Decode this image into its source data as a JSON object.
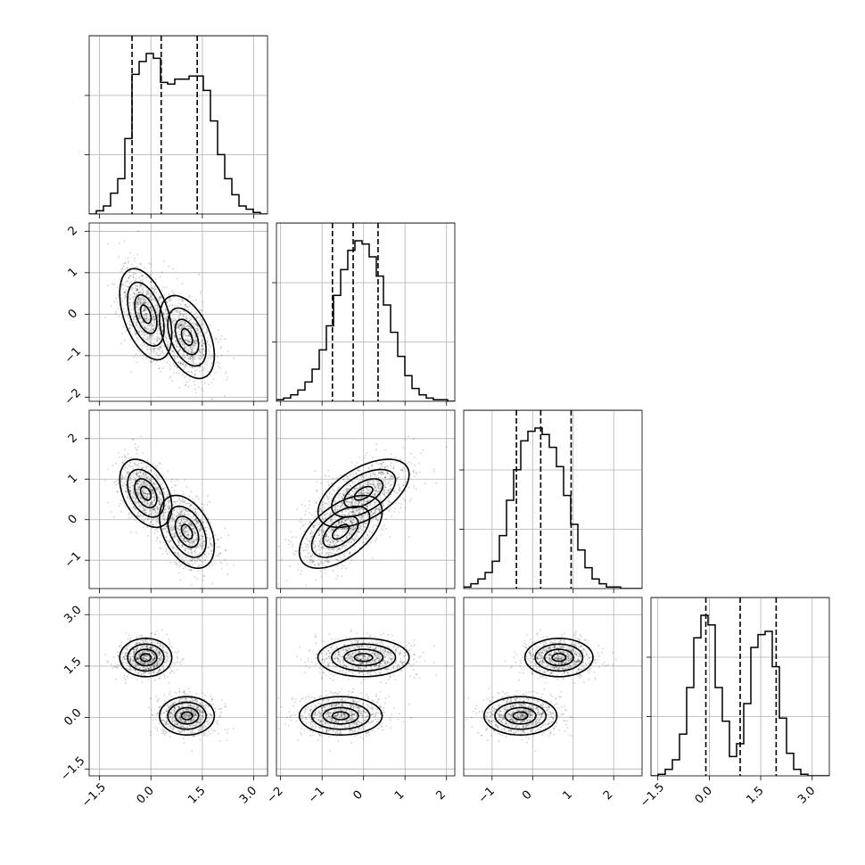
{
  "chart_data": {
    "type": "corner",
    "params": [
      {
        "range": [
          -1.8,
          3.4
        ],
        "ticks": [
          -1.5,
          0.0,
          1.5,
          3.0
        ],
        "tick_labels": [
          "−1.5",
          "0.0",
          "1.5",
          "3.0"
        ],
        "quantiles": [
          -0.55,
          0.3,
          1.35
        ],
        "hist": [
          0,
          0.02,
          0.05,
          0.13,
          0.22,
          0.47,
          0.87,
          0.95,
          1.0,
          0.97,
          0.82,
          0.81,
          0.84,
          0.84,
          0.86,
          0.86,
          0.77,
          0.58,
          0.37,
          0.22,
          0.12,
          0.05,
          0.03,
          0.01,
          0
        ]
      },
      {
        "range": [
          -2.1,
          2.2
        ],
        "ticks": [
          -2,
          -1,
          0,
          1,
          2
        ],
        "tick_labels": [
          "−2",
          "−1",
          "0",
          "1",
          "2"
        ],
        "quantiles": [
          -0.75,
          -0.25,
          0.35
        ],
        "hist": [
          0.01,
          0.02,
          0.04,
          0.07,
          0.12,
          0.2,
          0.32,
          0.47,
          0.66,
          0.82,
          0.94,
          1.0,
          0.98,
          0.9,
          0.78,
          0.6,
          0.43,
          0.28,
          0.16,
          0.08,
          0.04,
          0.02,
          0.01,
          0.01,
          0
        ]
      },
      {
        "range": [
          -1.7,
          2.7
        ],
        "ticks": [
          -1,
          0,
          1,
          2
        ],
        "tick_labels": [
          "−1",
          "0",
          "1",
          "2"
        ],
        "quantiles": [
          -0.4,
          0.2,
          0.95
        ],
        "hist": [
          0.01,
          0.03,
          0.06,
          0.1,
          0.17,
          0.33,
          0.55,
          0.74,
          0.92,
          0.98,
          1.0,
          0.96,
          0.88,
          0.76,
          0.58,
          0.4,
          0.24,
          0.13,
          0.06,
          0.03,
          0.01,
          0.01,
          0,
          0,
          0
        ]
      },
      {
        "range": [
          -1.7,
          3.5
        ],
        "ticks": [
          -1.5,
          0.0,
          1.5,
          3.0
        ],
        "tick_labels": [
          "−1.5",
          "0.0",
          "1.5",
          "3.0"
        ],
        "quantiles": [
          -0.1,
          0.9,
          1.95
        ],
        "hist": [
          0,
          0.01,
          0.04,
          0.1,
          0.26,
          0.55,
          0.86,
          1.0,
          0.94,
          0.55,
          0.34,
          0.12,
          0.2,
          0.45,
          0.8,
          0.88,
          0.9,
          0.68,
          0.36,
          0.14,
          0.04,
          0.01,
          0,
          0,
          0
        ]
      }
    ],
    "modes": [
      {
        "mean": [
          -0.15,
          0.0,
          0.65,
          1.75
        ],
        "sd": [
          0.38,
          0.55,
          0.42,
          0.28
        ],
        "corr01": -0.45,
        "corr02": -0.4,
        "corr12": 0.55
      },
      {
        "mean": [
          1.05,
          -0.55,
          -0.3,
          0.05
        ],
        "sd": [
          0.4,
          0.5,
          0.45,
          0.28
        ],
        "corr01": -0.45,
        "corr02": -0.4,
        "corr12": 0.55
      }
    ]
  }
}
